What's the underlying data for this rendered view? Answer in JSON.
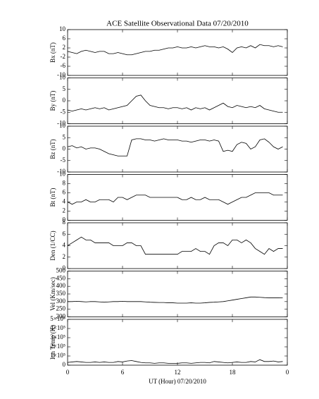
{
  "chart_data": [
    {
      "type": "line",
      "title": "ACE Satellite Observational Data   07/20/2010",
      "ylabel": "Bx (nT)",
      "x": [
        0,
        0.5,
        1,
        1.5,
        2,
        2.5,
        3,
        3.5,
        4,
        4.5,
        5,
        5.5,
        6,
        6.5,
        7,
        7.5,
        8,
        8.5,
        9,
        9.5,
        10,
        10.5,
        11,
        11.5,
        12,
        12.5,
        13,
        13.5,
        14,
        14.5,
        15,
        15.5,
        16,
        16.5,
        17,
        17.5,
        18,
        18.5,
        19,
        19.5,
        20,
        20.5,
        21,
        21.5,
        22,
        22.5,
        23,
        23.5
      ],
      "values": [
        0.5,
        0,
        -0.5,
        0.5,
        1,
        0.5,
        0,
        0.5,
        0.5,
        -0.5,
        -0.5,
        0,
        -0.5,
        -1,
        -1,
        -0.5,
        0,
        0.5,
        0.5,
        1,
        1,
        1.5,
        2,
        2,
        2.5,
        2,
        2,
        2.5,
        2,
        2.5,
        3,
        2.5,
        2.5,
        2,
        2.5,
        1.5,
        0,
        2,
        2.5,
        2,
        3,
        2,
        3.5,
        3,
        3,
        2.5,
        3,
        2.5
      ],
      "xlim": [
        0,
        24
      ],
      "xticks": [
        0,
        6,
        12,
        18,
        {
          "value": 24,
          "label": "0"
        }
      ],
      "ylim": [
        -10,
        10
      ],
      "yticks": [
        -10,
        -6,
        -2,
        2,
        6,
        10
      ],
      "color": "#000000"
    },
    {
      "type": "line",
      "ylabel": "By (nT)",
      "x": [
        0,
        0.5,
        1,
        1.5,
        2,
        2.5,
        3,
        3.5,
        4,
        4.5,
        5,
        5.5,
        6,
        6.5,
        7,
        7.5,
        8,
        8.5,
        9,
        9.5,
        10,
        10.5,
        11,
        11.5,
        12,
        12.5,
        13,
        13.5,
        14,
        14.5,
        15,
        15.5,
        16,
        16.5,
        17,
        17.5,
        18,
        18.5,
        19,
        19.5,
        20,
        20.5,
        21,
        21.5,
        22,
        22.5,
        23,
        23.5
      ],
      "values": [
        -4,
        -4.5,
        -4,
        -3.5,
        -4,
        -3.5,
        -3,
        -3.5,
        -3,
        -4,
        -3.5,
        -3,
        -2.5,
        -2,
        0,
        2,
        2.5,
        0,
        -2,
        -2.5,
        -3,
        -3,
        -3.5,
        -3,
        -3,
        -3.5,
        -3,
        -4,
        -3,
        -3.5,
        -3,
        -4,
        -3,
        -2,
        -1,
        -2.5,
        -3,
        -2,
        -2.5,
        -3,
        -2.5,
        -3,
        -2,
        -3.5,
        -4,
        -4.5,
        -5,
        -5
      ],
      "xlim": [
        0,
        24
      ],
      "xticks": [
        0,
        6,
        12,
        18,
        {
          "value": 24,
          "label": "0"
        }
      ],
      "ylim": [
        -10,
        10
      ],
      "yticks": [
        -10,
        -5,
        0,
        5,
        10
      ],
      "color": "#000000"
    },
    {
      "type": "line",
      "ylabel": "Bz (nT)",
      "x": [
        0,
        0.5,
        1,
        1.5,
        2,
        2.5,
        3,
        3.5,
        4,
        4.5,
        5,
        5.5,
        6,
        6.5,
        7,
        7.5,
        8,
        8.5,
        9,
        9.5,
        10,
        10.5,
        11,
        11.5,
        12,
        12.5,
        13,
        13.5,
        14,
        14.5,
        15,
        15.5,
        16,
        16.5,
        17,
        17.5,
        18,
        18.5,
        19,
        19.5,
        20,
        20.5,
        21,
        21.5,
        22,
        22.5,
        23,
        23.5
      ],
      "values": [
        1,
        1.5,
        0.5,
        1,
        0,
        0.5,
        0.5,
        0,
        -1,
        -2,
        -2.5,
        -3,
        -3,
        -3,
        4,
        4.5,
        4.5,
        4,
        4,
        3.5,
        4,
        4.5,
        4,
        4,
        4,
        3.5,
        3.5,
        3,
        3.5,
        4,
        4,
        3.5,
        4,
        3.5,
        -1,
        -0.5,
        -1,
        2,
        3,
        2.5,
        0,
        1,
        4,
        4.5,
        3,
        1,
        0,
        1
      ],
      "xlim": [
        0,
        24
      ],
      "xticks": [
        0,
        6,
        12,
        18,
        {
          "value": 24,
          "label": "0"
        }
      ],
      "ylim": [
        -10,
        10
      ],
      "yticks": [
        -10,
        -5,
        0,
        5,
        10
      ],
      "color": "#000000"
    },
    {
      "type": "line",
      "ylabel": "Bt (nT)",
      "x": [
        0,
        0.5,
        1,
        1.5,
        2,
        2.5,
        3,
        3.5,
        4,
        4.5,
        5,
        5.5,
        6,
        6.5,
        7,
        7.5,
        8,
        8.5,
        9,
        9.5,
        10,
        10.5,
        11,
        11.5,
        12,
        12.5,
        13,
        13.5,
        14,
        14.5,
        15,
        15.5,
        16,
        16.5,
        17,
        17.5,
        18,
        18.5,
        19,
        19.5,
        20,
        20.5,
        21,
        21.5,
        22,
        22.5,
        23,
        23.5
      ],
      "values": [
        4,
        3.5,
        4,
        4,
        4.5,
        4,
        4,
        4.5,
        4.5,
        4.5,
        4,
        5,
        5,
        4.5,
        5,
        5.5,
        5.5,
        5.5,
        5,
        5,
        5,
        5,
        5,
        5,
        5,
        4.5,
        4.5,
        5,
        4.5,
        4.5,
        5,
        4.5,
        4.5,
        4.5,
        4,
        3.5,
        4,
        4.5,
        5,
        5,
        5.5,
        6,
        6,
        6,
        6,
        5.5,
        5.5,
        5.5
      ],
      "xlim": [
        0,
        24
      ],
      "xticks": [
        0,
        6,
        12,
        18,
        {
          "value": 24,
          "label": "0"
        }
      ],
      "ylim": [
        0,
        10
      ],
      "yticks": [
        0,
        2,
        4,
        6,
        8,
        10
      ],
      "color": "#000000"
    },
    {
      "type": "line",
      "ylabel": "Den (1/CC)",
      "x": [
        0,
        0.5,
        1,
        1.5,
        2,
        2.5,
        3,
        3.5,
        4,
        4.5,
        5,
        5.5,
        6,
        6.5,
        7,
        7.5,
        8,
        8.5,
        9,
        9.5,
        10,
        10.5,
        11,
        11.5,
        12,
        12.5,
        13,
        13.5,
        14,
        14.5,
        15,
        15.5,
        16,
        16.5,
        17,
        17.5,
        18,
        18.5,
        19,
        19.5,
        20,
        20.5,
        21,
        21.5,
        22,
        22.5,
        23,
        23.5
      ],
      "values": [
        4,
        4.5,
        5,
        5.5,
        5,
        5,
        4.5,
        4.5,
        4.5,
        4.5,
        4,
        4,
        4,
        4.5,
        4.5,
        4,
        4,
        2.5,
        2.5,
        2.5,
        2.5,
        2.5,
        2.5,
        2.5,
        2.5,
        3,
        3,
        3,
        3.5,
        3,
        3,
        2.5,
        4,
        4.5,
        4.5,
        4,
        5,
        5,
        4.5,
        5,
        4.5,
        3.5,
        3,
        2.5,
        3.5,
        3,
        3.5,
        3.5
      ],
      "xlim": [
        0,
        24
      ],
      "xticks": [
        0,
        6,
        12,
        18,
        {
          "value": 24,
          "label": "0"
        }
      ],
      "ylim": [
        0,
        8
      ],
      "yticks": [
        0,
        2,
        4,
        6,
        8
      ],
      "color": "#000000"
    },
    {
      "type": "line",
      "ylabel": "Vel (Km/sec)",
      "x": [
        0,
        0.5,
        1,
        1.5,
        2,
        2.5,
        3,
        3.5,
        4,
        4.5,
        5,
        5.5,
        6,
        6.5,
        7,
        7.5,
        8,
        8.5,
        9,
        9.5,
        10,
        10.5,
        11,
        11.5,
        12,
        12.5,
        13,
        13.5,
        14,
        14.5,
        15,
        15.5,
        16,
        16.5,
        17,
        17.5,
        18,
        18.5,
        19,
        19.5,
        20,
        20.5,
        21,
        21.5,
        22,
        22.5,
        23,
        23.5
      ],
      "values": [
        300,
        300,
        302,
        300,
        298,
        300,
        300,
        298,
        296,
        298,
        300,
        300,
        302,
        300,
        300,
        300,
        300,
        298,
        296,
        295,
        294,
        294,
        292,
        292,
        290,
        290,
        290,
        292,
        290,
        290,
        292,
        295,
        296,
        298,
        300,
        305,
        310,
        315,
        320,
        325,
        330,
        330,
        328,
        326,
        325,
        325,
        325,
        324
      ],
      "xlim": [
        0,
        24
      ],
      "xticks": [
        0,
        6,
        12,
        18,
        {
          "value": 24,
          "label": "0"
        }
      ],
      "ylim": [
        200,
        500
      ],
      "yticks": [
        200,
        250,
        300,
        350,
        400,
        450,
        500
      ],
      "color": "#000000"
    },
    {
      "type": "line",
      "ylabel": "Ion Temp (K)",
      "xlabel": "UT (Hour)   07/20/2010",
      "x": [
        0,
        0.5,
        1,
        1.5,
        2,
        2.5,
        3,
        3.5,
        4,
        4.5,
        5,
        5.5,
        6,
        6.5,
        7,
        7.5,
        8,
        8.5,
        9,
        9.5,
        10,
        10.5,
        11,
        11.5,
        12,
        12.5,
        13,
        13.5,
        14,
        14.5,
        15,
        15.5,
        16,
        16.5,
        17,
        17.5,
        18,
        18.5,
        19,
        19.5,
        20,
        20.5,
        21,
        21.5,
        22,
        22.5,
        23,
        23.5
      ],
      "values": [
        30000,
        35000,
        40000,
        35000,
        30000,
        30000,
        35000,
        30000,
        35000,
        30000,
        30000,
        40000,
        35000,
        45000,
        50000,
        40000,
        30000,
        25000,
        25000,
        20000,
        25000,
        25000,
        20000,
        20000,
        20000,
        25000,
        25000,
        20000,
        25000,
        30000,
        30000,
        25000,
        40000,
        35000,
        30000,
        25000,
        30000,
        35000,
        30000,
        30000,
        40000,
        35000,
        60000,
        40000,
        40000,
        45000,
        35000,
        40000
      ],
      "xlim": [
        0,
        24
      ],
      "xticks": [
        0,
        6,
        12,
        18,
        {
          "value": 24,
          "label": "0"
        }
      ],
      "ylim": [
        0,
        500000
      ],
      "yticks": [
        0,
        {
          "value": 100000,
          "label": "1×10⁵"
        },
        {
          "value": 200000,
          "label": "2×10⁵"
        },
        {
          "value": 300000,
          "label": "3×10⁵"
        },
        {
          "value": 400000,
          "label": "4×10⁵"
        },
        {
          "value": 500000,
          "label": "5×10⁵"
        }
      ],
      "color": "#000000"
    }
  ]
}
